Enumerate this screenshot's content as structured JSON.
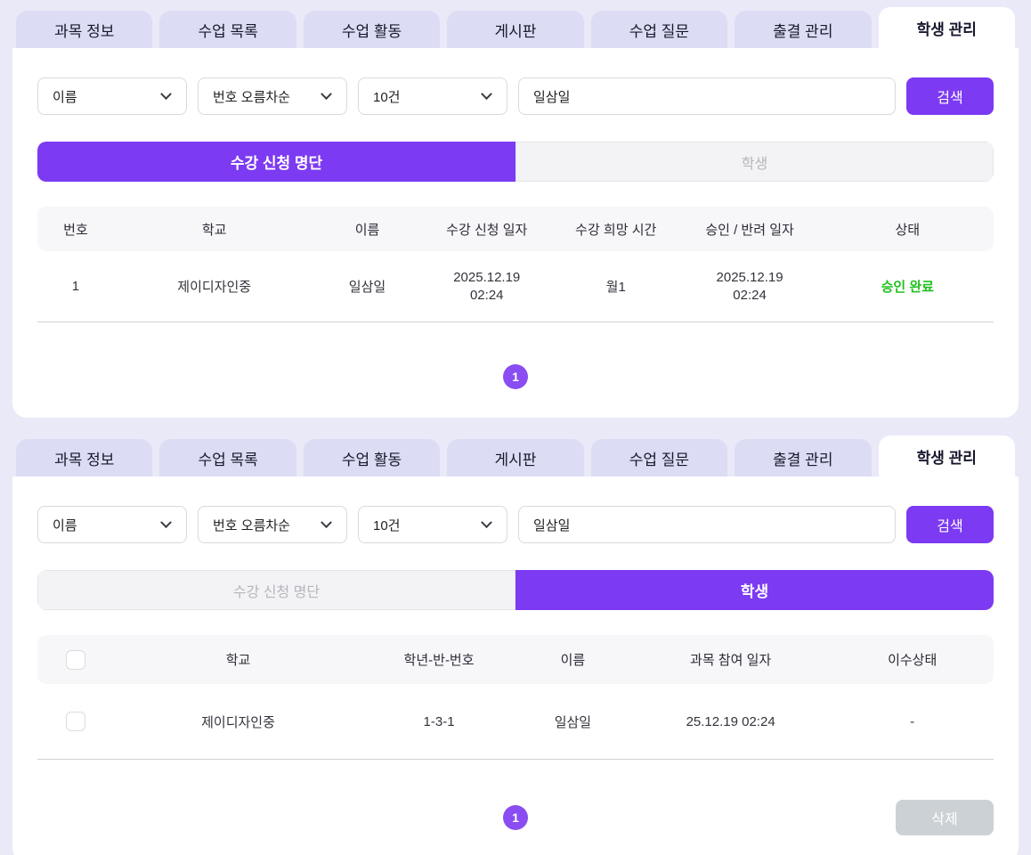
{
  "colors": {
    "accent": "#7c3af2",
    "page_bg": "#e9e9f8",
    "tab_bg": "#dcdcf4",
    "status_green": "#1fc11f"
  },
  "tabs": [
    {
      "label": "과목 정보"
    },
    {
      "label": "수업 목록"
    },
    {
      "label": "수업 활동"
    },
    {
      "label": "게시판"
    },
    {
      "label": "수업 질문"
    },
    {
      "label": "출결 관리"
    },
    {
      "label": "학생 관리"
    }
  ],
  "filters": {
    "search_field": "이름",
    "sort_order": "번호 오름차순",
    "page_size": "10건",
    "search_value": "일삼일",
    "search_button": "검색"
  },
  "toggle": {
    "applicants": "수강 신청 명단",
    "students": "학생"
  },
  "panel_top": {
    "table": {
      "headers": [
        "번호",
        "학교",
        "이름",
        "수강 신청 일자",
        "수강 희망 시간",
        "승인 / 반려 일자",
        "상태"
      ],
      "row": {
        "no": "1",
        "school": "제이디자인중",
        "name": "일삼일",
        "applied_at": "2025.12.19\n02:24",
        "desired_time": "월1",
        "decided_at": "2025.12.19\n02:24",
        "status": "승인 완료"
      }
    },
    "pagination": {
      "page": "1"
    }
  },
  "panel_bottom": {
    "table": {
      "headers": [
        "학교",
        "학년-반-번호",
        "이름",
        "과목 참여 일자",
        "이수상태"
      ],
      "row": {
        "school": "제이디자인중",
        "grade_class_no": "1-3-1",
        "name": "일삼일",
        "joined_at": "25.12.19 02:24",
        "completion": "-"
      }
    },
    "pagination": {
      "page": "1"
    },
    "delete_button": "삭제"
  }
}
